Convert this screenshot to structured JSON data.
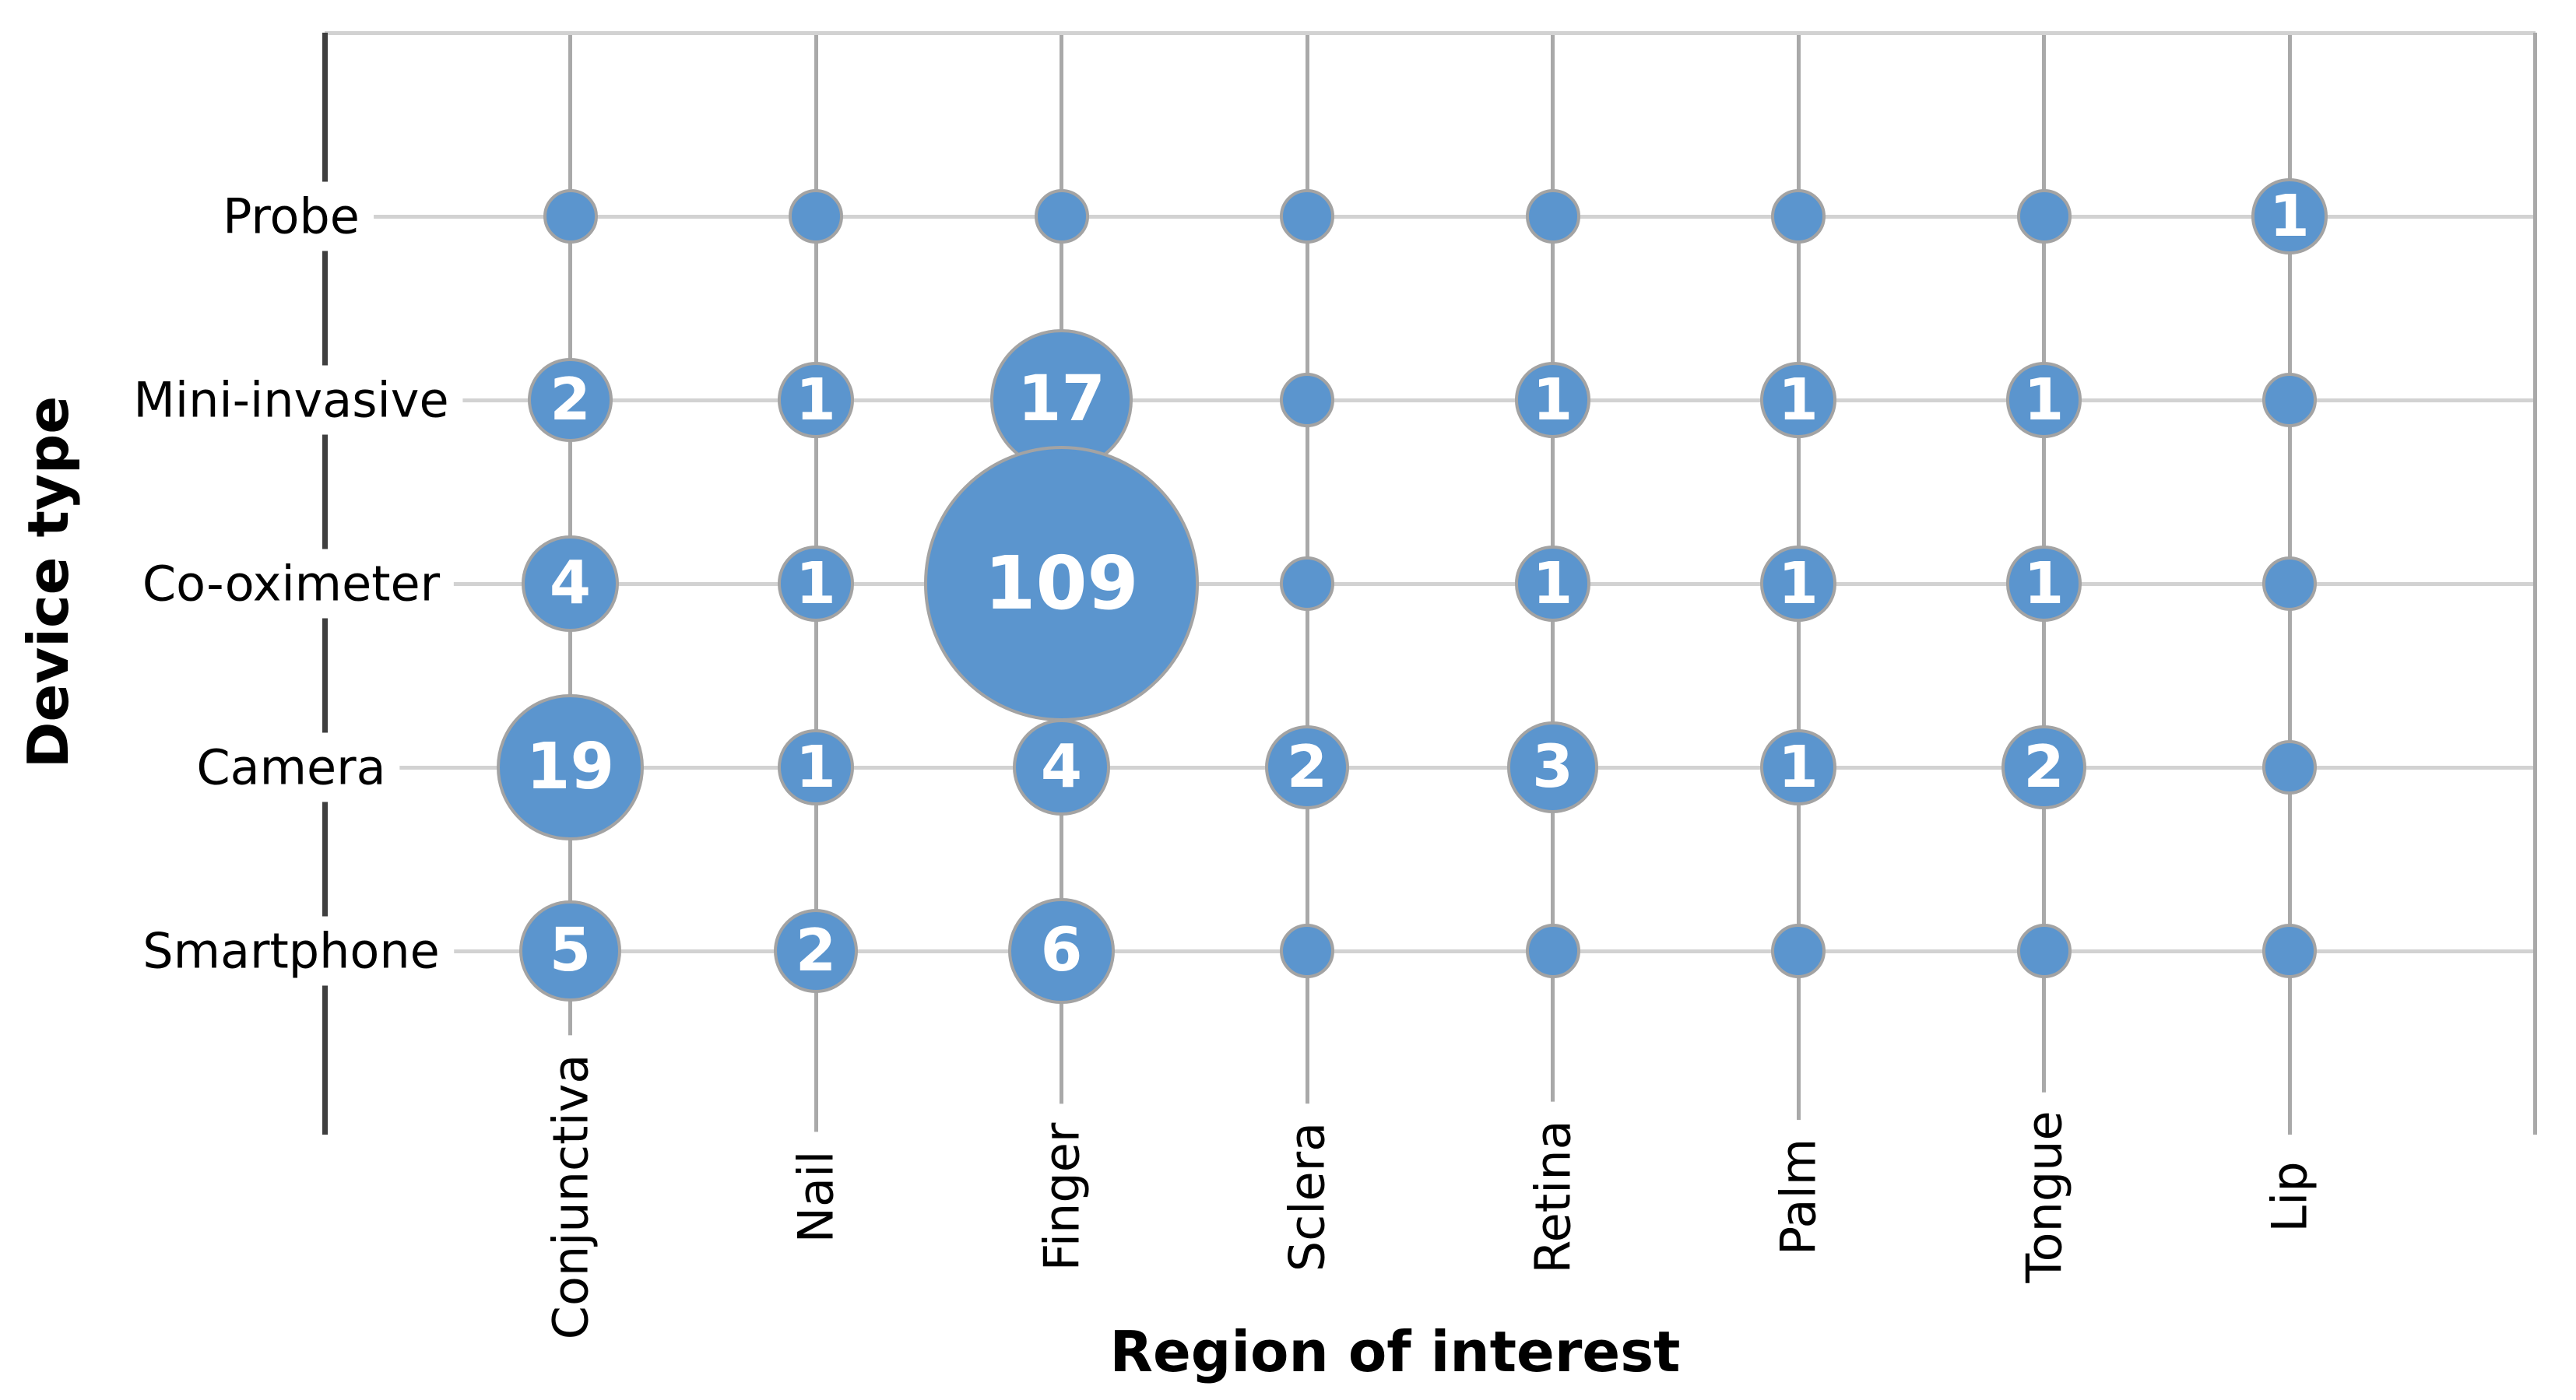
{
  "chart_data": {
    "type": "scatter",
    "subtype": "bubble-matrix",
    "title": "",
    "xlabel": "Region of interest",
    "ylabel": "Device type",
    "x_categories": [
      "Conjunctiva",
      "Nail",
      "Finger",
      "Sclera",
      "Retina",
      "Palm",
      "Tongue",
      "Lip"
    ],
    "y_categories_top_to_bottom": [
      "Probe",
      "Mini-invasive",
      "Co-oximeter",
      "Camera",
      "Smartphone"
    ],
    "series": [
      {
        "name": "Probe",
        "counts": [
          0,
          0,
          0,
          0,
          0,
          0,
          0,
          1
        ]
      },
      {
        "name": "Mini-invasive",
        "counts": [
          2,
          1,
          17,
          0,
          1,
          1,
          1,
          0
        ]
      },
      {
        "name": "Co-oximeter",
        "counts": [
          4,
          1,
          109,
          0,
          1,
          1,
          1,
          0
        ]
      },
      {
        "name": "Camera",
        "counts": [
          19,
          1,
          4,
          2,
          3,
          1,
          2,
          0
        ]
      },
      {
        "name": "Smartphone",
        "counts": [
          5,
          2,
          6,
          0,
          0,
          0,
          0,
          0
        ]
      }
    ],
    "zero_rendering": "small unlabeled dot",
    "size_encoding": "bubble diameter grows with square root of count; count printed in white inside bubble when count >= 1",
    "grid": "row and column gridlines on; no legend",
    "style": {
      "bubble_fill": "#5B95CE",
      "bubble_border": "#A3A3A3",
      "bubble_label_color": "#FFFFFF",
      "row_gridline_color": "#D2D2D2",
      "column_gridline_color": "#A9A9A9",
      "axis_line_color": "#3F3F3F",
      "text_color": "#000000",
      "background": "#FFFFFF"
    }
  }
}
